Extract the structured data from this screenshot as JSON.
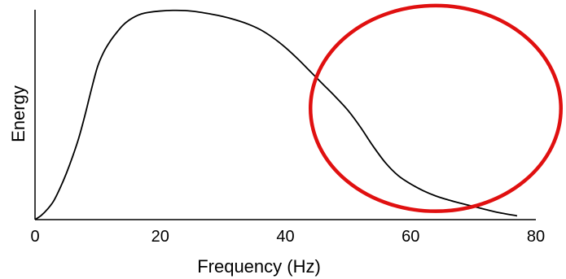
{
  "chart_data": {
    "type": "line",
    "title": "",
    "xlabel": "Frequency (Hz)",
    "ylabel": "Energy",
    "xlim": [
      0,
      80
    ],
    "ylim": [
      0,
      1
    ],
    "xticks": [
      0,
      20,
      40,
      60,
      80
    ],
    "yticks_shown": false,
    "grid": false,
    "series": [
      {
        "color": "#000000",
        "x": [
          0,
          1,
          2,
          3,
          4,
          5,
          6,
          7,
          8,
          9,
          10,
          11,
          12,
          13,
          14,
          15,
          16,
          17,
          18,
          20,
          22,
          24,
          26,
          28,
          30,
          32,
          34,
          36,
          38,
          40,
          42,
          44,
          46,
          48,
          50,
          52,
          54,
          56,
          58,
          60,
          62,
          64,
          66,
          68,
          70,
          72,
          74,
          77
        ],
        "y": [
          0.0,
          0.02,
          0.05,
          0.09,
          0.15,
          0.22,
          0.3,
          0.39,
          0.5,
          0.62,
          0.73,
          0.8,
          0.85,
          0.89,
          0.925,
          0.95,
          0.968,
          0.98,
          0.987,
          0.994,
          0.997,
          0.996,
          0.99,
          0.98,
          0.968,
          0.952,
          0.932,
          0.905,
          0.867,
          0.82,
          0.765,
          0.705,
          0.645,
          0.585,
          0.52,
          0.44,
          0.35,
          0.27,
          0.21,
          0.17,
          0.138,
          0.113,
          0.094,
          0.078,
          0.063,
          0.048,
          0.034,
          0.018
        ]
      }
    ],
    "annotation": {
      "shape": "ellipse",
      "color": "#e01010",
      "center_x": 64,
      "center_y": 0.53,
      "radius_x": 20,
      "radius_y": 0.49
    }
  }
}
